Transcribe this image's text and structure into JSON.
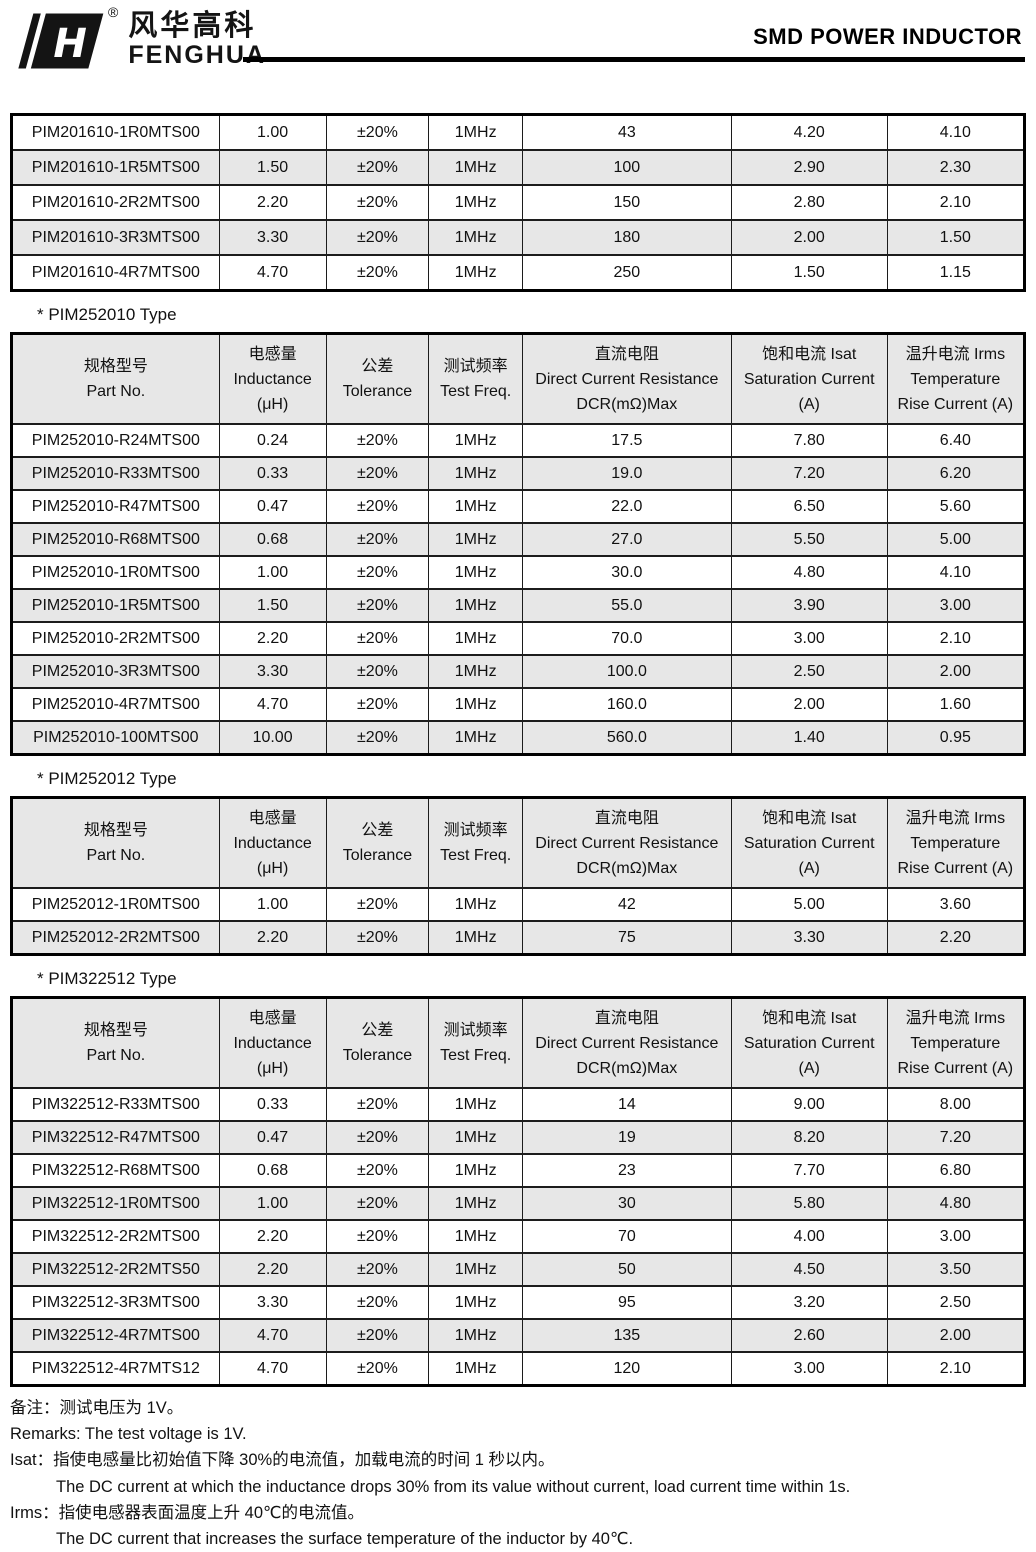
{
  "header": {
    "logo_cn": "风华高科",
    "logo_en": "FENGHUA",
    "registered_mark": "®",
    "title": "SMD POWER INDUCTOR"
  },
  "colors": {
    "row_alt": "#e7e7e7",
    "border": "#000000",
    "text": "#111111"
  },
  "layout": {
    "col_widths": [
      "20.5%",
      "10.55%",
      "10.15%",
      "9.25%",
      "20.6%",
      "15.4%",
      "13.55%"
    ]
  },
  "columns": [
    {
      "lines": [
        "规格型号",
        "Part No."
      ]
    },
    {
      "lines": [
        "电感量",
        "Inductance",
        "(μH)"
      ]
    },
    {
      "lines": [
        "公差",
        "Tolerance"
      ]
    },
    {
      "lines": [
        "测试频率",
        "Test Freq."
      ]
    },
    {
      "lines": [
        "直流电阻",
        "Direct Current Resistance",
        "DCR(mΩ)Max"
      ]
    },
    {
      "lines": [
        "饱和电流  Isat",
        "Saturation Current",
        "(A)"
      ]
    },
    {
      "lines": [
        "温升电流  Irms",
        "Temperature",
        "Rise Current (A)"
      ]
    }
  ],
  "sections": [
    {
      "id": "pim201610",
      "heading": null,
      "has_header": false,
      "rows": [
        [
          "PIM201610-1R0MTS00",
          "1.00",
          "±20%",
          "1MHz",
          "43",
          "4.20",
          "4.10"
        ],
        [
          "PIM201610-1R5MTS00",
          "1.50",
          "±20%",
          "1MHz",
          "100",
          "2.90",
          "2.30"
        ],
        [
          "PIM201610-2R2MTS00",
          "2.20",
          "±20%",
          "1MHz",
          "150",
          "2.80",
          "2.10"
        ],
        [
          "PIM201610-3R3MTS00",
          "3.30",
          "±20%",
          "1MHz",
          "180",
          "2.00",
          "1.50"
        ],
        [
          "PIM201610-4R7MTS00",
          "4.70",
          "±20%",
          "1MHz",
          "250",
          "1.50",
          "1.15"
        ]
      ]
    },
    {
      "id": "pim252010",
      "heading": "*  PIM252010 Type",
      "has_header": true,
      "rows": [
        [
          "PIM252010-R24MTS00",
          "0.24",
          "±20%",
          "1MHz",
          "17.5",
          "7.80",
          "6.40"
        ],
        [
          "PIM252010-R33MTS00",
          "0.33",
          "±20%",
          "1MHz",
          "19.0",
          "7.20",
          "6.20"
        ],
        [
          "PIM252010-R47MTS00",
          "0.47",
          "±20%",
          "1MHz",
          "22.0",
          "6.50",
          "5.60"
        ],
        [
          "PIM252010-R68MTS00",
          "0.68",
          "±20%",
          "1MHz",
          "27.0",
          "5.50",
          "5.00"
        ],
        [
          "PIM252010-1R0MTS00",
          "1.00",
          "±20%",
          "1MHz",
          "30.0",
          "4.80",
          "4.10"
        ],
        [
          "PIM252010-1R5MTS00",
          "1.50",
          "±20%",
          "1MHz",
          "55.0",
          "3.90",
          "3.00"
        ],
        [
          "PIM252010-2R2MTS00",
          "2.20",
          "±20%",
          "1MHz",
          "70.0",
          "3.00",
          "2.10"
        ],
        [
          "PIM252010-3R3MTS00",
          "3.30",
          "±20%",
          "1MHz",
          "100.0",
          "2.50",
          "2.00"
        ],
        [
          "PIM252010-4R7MTS00",
          "4.70",
          "±20%",
          "1MHz",
          "160.0",
          "2.00",
          "1.60"
        ],
        [
          "PIM252010-100MTS00",
          "10.00",
          "±20%",
          "1MHz",
          "560.0",
          "1.40",
          "0.95"
        ]
      ]
    },
    {
      "id": "pim252012",
      "heading": "*  PIM252012 Type",
      "has_header": true,
      "rows": [
        [
          "PIM252012-1R0MTS00",
          "1.00",
          "±20%",
          "1MHz",
          "42",
          "5.00",
          "3.60"
        ],
        [
          "PIM252012-2R2MTS00",
          "2.20",
          "±20%",
          "1MHz",
          "75",
          "3.30",
          "2.20"
        ]
      ]
    },
    {
      "id": "pim322512",
      "heading": "*  PIM322512 Type",
      "has_header": true,
      "rows": [
        [
          "PIM322512-R33MTS00",
          "0.33",
          "±20%",
          "1MHz",
          "14",
          "9.00",
          "8.00"
        ],
        [
          "PIM322512-R47MTS00",
          "0.47",
          "±20%",
          "1MHz",
          "19",
          "8.20",
          "7.20"
        ],
        [
          "PIM322512-R68MTS00",
          "0.68",
          "±20%",
          "1MHz",
          "23",
          "7.70",
          "6.80"
        ],
        [
          "PIM322512-1R0MTS00",
          "1.00",
          "±20%",
          "1MHz",
          "30",
          "5.80",
          "4.80"
        ],
        [
          "PIM322512-2R2MTS00",
          "2.20",
          "±20%",
          "1MHz",
          "70",
          "4.00",
          "3.00"
        ],
        [
          "PIM322512-2R2MTS50",
          "2.20",
          "±20%",
          "1MHz",
          "50",
          "4.50",
          "3.50"
        ],
        [
          "PIM322512-3R3MTS00",
          "3.30",
          "±20%",
          "1MHz",
          "95",
          "3.20",
          "2.50"
        ],
        [
          "PIM322512-4R7MTS00",
          "4.70",
          "±20%",
          "1MHz",
          "135",
          "2.60",
          "2.00"
        ],
        [
          "PIM322512-4R7MTS12",
          "4.70",
          "±20%",
          "1MHz",
          "120",
          "3.00",
          "2.10"
        ]
      ]
    }
  ],
  "notes": [
    {
      "text": "备注：测试电压为 1V。",
      "indent": false
    },
    {
      "text": "Remarks: The test voltage is 1V.",
      "indent": false
    },
    {
      "text": "Isat：指使电感量比初始值下降 30%的电流值，加载电流的时间 1 秒以内。",
      "indent": false
    },
    {
      "text": "The DC current at which the inductance drops 30% from its value without current, load current time within 1s.",
      "indent": true
    },
    {
      "text": "Irms：指使电感器表面温度上升 40℃的电流值。",
      "indent": false
    },
    {
      "text": "The DC current that increases the surface temperature of the inductor by 40℃.",
      "indent": true
    }
  ]
}
